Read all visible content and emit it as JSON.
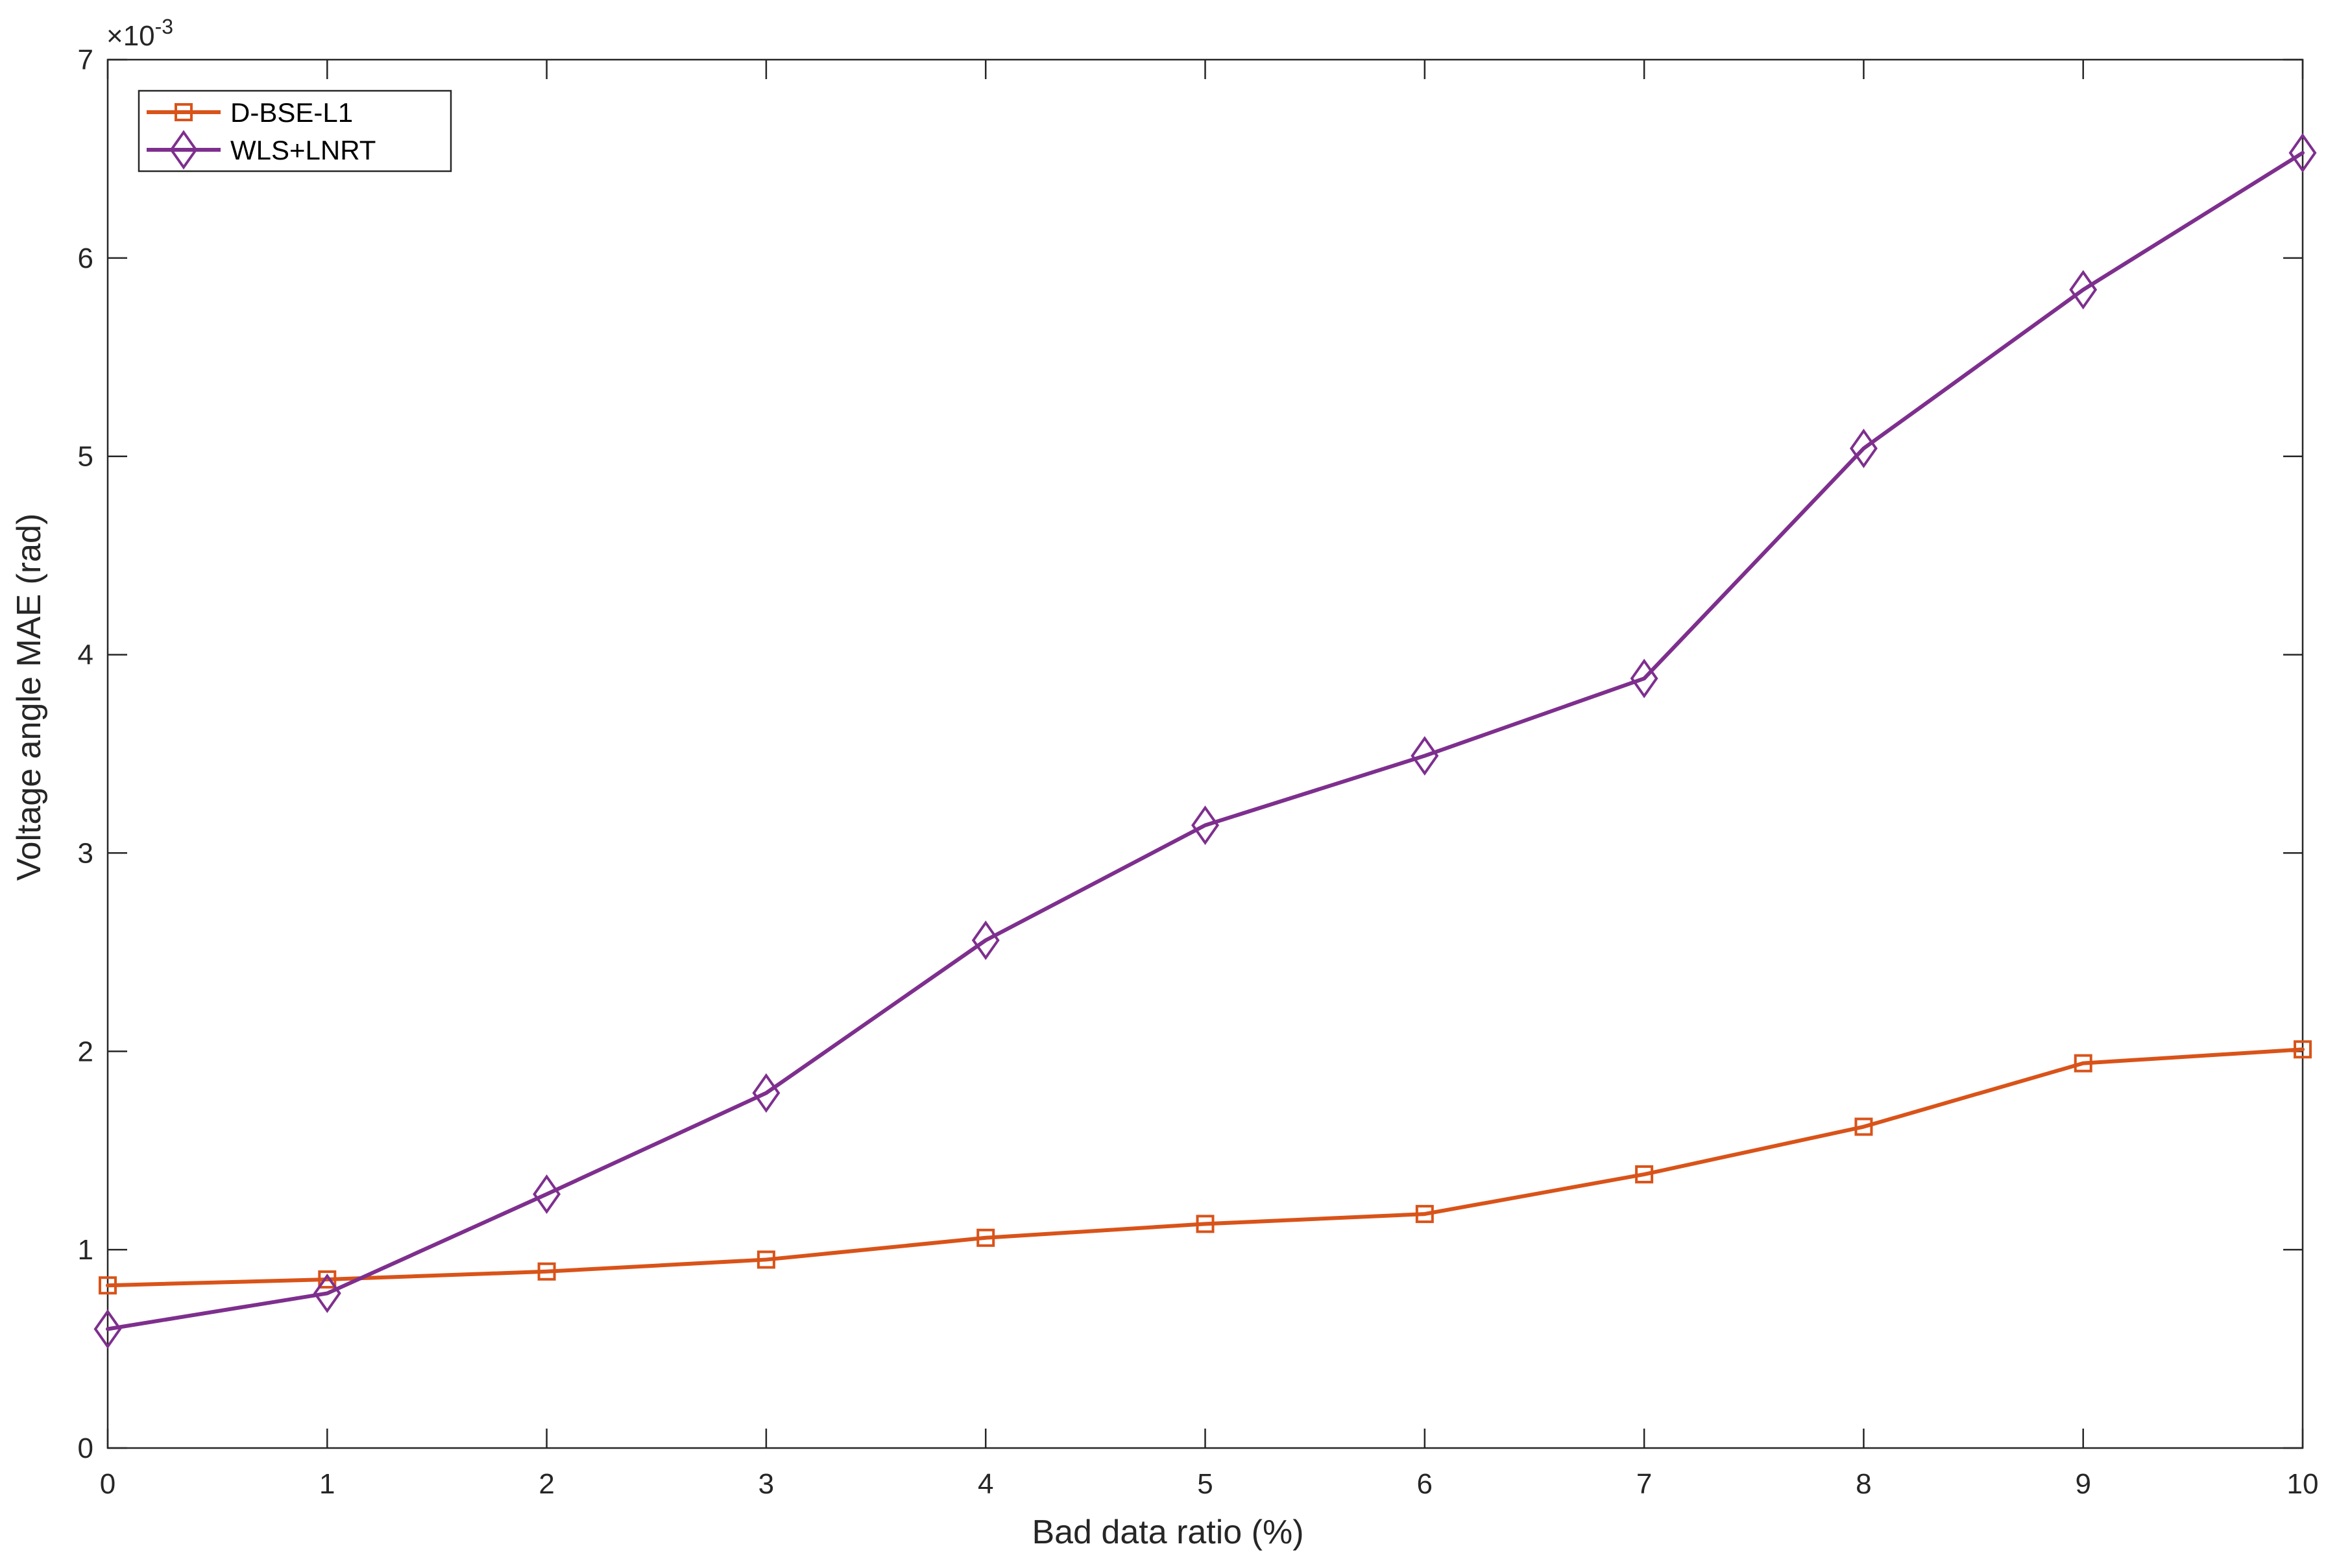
{
  "chart_data": {
    "type": "line",
    "xlabel": "Bad data ratio (%)",
    "ylabel": "Voltage angle MAE (rad)",
    "y_exponent_prefix": "×10",
    "y_exponent_power": "-3",
    "xlim": [
      0,
      10
    ],
    "ylim": [
      0,
      7
    ],
    "x_ticks": [
      0,
      1,
      2,
      3,
      4,
      5,
      6,
      7,
      8,
      9,
      10
    ],
    "y_ticks": [
      0,
      1,
      2,
      3,
      4,
      5,
      6,
      7
    ],
    "x_tick_labels": [
      "0",
      "1",
      "2",
      "3",
      "4",
      "5",
      "6",
      "7",
      "8",
      "9",
      "10"
    ],
    "y_tick_labels": [
      "0",
      "1",
      "2",
      "3",
      "4",
      "5",
      "6",
      "7"
    ],
    "grid": false,
    "legend_position": "top-left",
    "x": [
      0,
      1,
      2,
      3,
      4,
      5,
      6,
      7,
      8,
      9,
      10
    ],
    "series": [
      {
        "name": "D-BSE-L1",
        "marker": "square",
        "color": "#D95319",
        "values": [
          0.82,
          0.85,
          0.89,
          0.95,
          1.06,
          1.13,
          1.18,
          1.38,
          1.62,
          1.94,
          2.01
        ]
      },
      {
        "name": "WLS+LNRT",
        "marker": "diamond",
        "color": "#7E2F8E",
        "values": [
          0.6,
          0.78,
          1.28,
          1.79,
          2.56,
          3.14,
          3.49,
          3.88,
          5.04,
          5.84,
          6.53
        ]
      }
    ]
  }
}
